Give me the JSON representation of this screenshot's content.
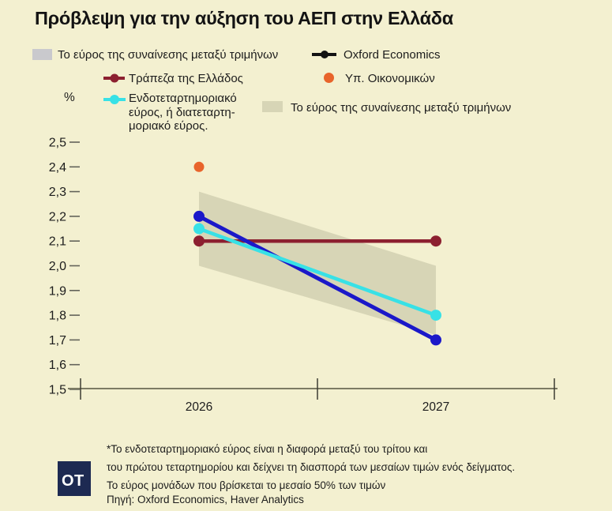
{
  "title": "Πρόβλεψη για την αύξηση του ΑΕΠ στην Ελλάδα",
  "unit_label": "%",
  "legend": {
    "row1_band_label": "Το εύρος της συναίνεσης μεταξύ τριμήνων",
    "oxford_label": "Oxford Economics",
    "bank_of_greece_label": "Τράπεζα της Ελλάδος",
    "ministry_of_finance_label": "Υπ. Οικονομικών",
    "iqr_label_lines": [
      "Ενδοτεταρτημοριακό",
      "εύρος, ή διατεταρτη-",
      "μοριακό εύρος."
    ],
    "row3_band_label": "Το εύρος της συναίνεσης μεταξύ τριμήνων"
  },
  "colors": {
    "background": "#f3f0d0",
    "band_olive": "#d7d5b6",
    "legend_grey_swatch": "#c9c9cd",
    "oxford_line": "#1b18c9",
    "oxford_legend_marker": "#131313",
    "iqr_cyan": "#38e1e6",
    "bank_of_greece_maroon": "#8c2030",
    "ministry_orange": "#e8642b",
    "axis": "#7c7b64",
    "tick": "#3c3c33",
    "text": "#1c1c1c",
    "logo_background": "#1d2a52"
  },
  "chart_data": {
    "type": "line",
    "title": "Πρόβλεψη για την αύξηση του ΑΕΠ στην Ελλάδα",
    "ylabel": "%",
    "xlabel": "",
    "grid": false,
    "legend_position": "top",
    "x_categories": [
      "2026",
      "2027"
    ],
    "ylim": [
      1.5,
      2.5
    ],
    "y_tick_labels": [
      "2,5",
      "2,4",
      "2,3",
      "2,2",
      "2,1",
      "2,0",
      "1,9",
      "1,8",
      "1,7",
      "1,6",
      "1,5"
    ],
    "y_tick_values": [
      2.5,
      2.4,
      2.3,
      2.2,
      2.1,
      2.0,
      1.9,
      1.8,
      1.7,
      1.6,
      1.5
    ],
    "series": [
      {
        "name": "Τράπεζα της Ελλάδος",
        "color": "#8c2030",
        "values": [
          2.1,
          2.1
        ],
        "marker_only": false
      },
      {
        "name": "Oxford Economics",
        "color": "#1b18c9",
        "values": [
          2.2,
          1.7
        ],
        "marker_only": false
      },
      {
        "name": "Ενδοτεταρτημοριακό εύρος, ή διατεταρτημοριακό εύρος",
        "color": "#38e1e6",
        "values": [
          2.15,
          1.8
        ],
        "marker_only": false
      },
      {
        "name": "Υπ. Οικονομικών",
        "color": "#e8642b",
        "values": [
          2.4,
          null
        ],
        "marker_only": true
      }
    ],
    "band": {
      "name": "Το εύρος της συναίνεσης μεταξύ τριμήνων",
      "color": "#d7d5b6",
      "upper": [
        2.3,
        2.0
      ],
      "lower": [
        2.0,
        1.72
      ]
    }
  },
  "footnote_lines": [
    "*Το ενδοτεταρτημοριακό εύρος είναι η διαφορά μεταξύ του τρίτου και",
    "του πρώτου τεταρτημορίου και δείχνει τη διασπορά των μεσαίων τιμών ενός δείγματος.",
    "Το εύρος μονάδων που βρίσκεται το μεσαίο 50% των τιμών"
  ],
  "source": "Πηγή: Oxford Economics, Haver Analytics",
  "logo_text": "OT"
}
